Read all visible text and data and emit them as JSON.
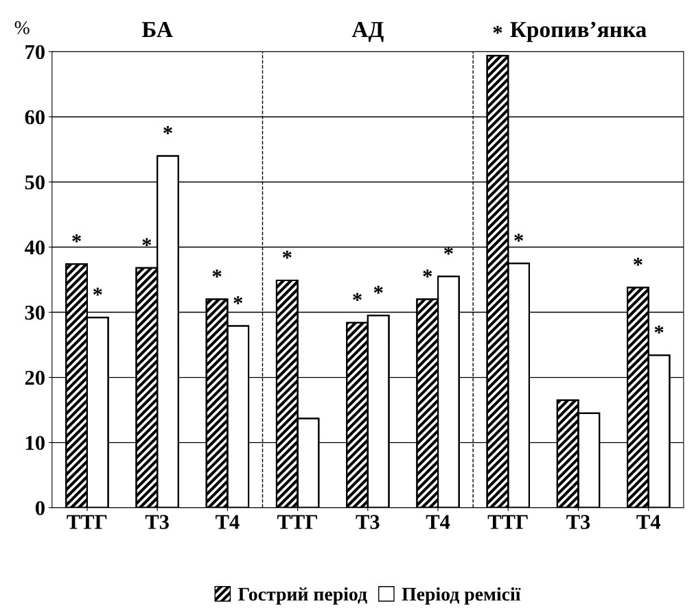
{
  "chart_data": {
    "type": "bar",
    "ylabel": "%",
    "categories": [
      "ТТГ",
      "Т3",
      "Т4",
      "ТТГ",
      "Т3",
      "Т4",
      "ТТГ",
      "Т3",
      "Т4"
    ],
    "series": [
      {
        "name": "Гострий період",
        "color": "#000000",
        "values": [
          37.4,
          36.8,
          32.0,
          34.9,
          28.4,
          32.0,
          69.4,
          16.5,
          33.8
        ],
        "value_labels": [
          "*",
          "*",
          "*",
          "*",
          "*",
          "*",
          "*",
          null,
          "*"
        ]
      },
      {
        "name": "Період ремісії",
        "color": "#ffffff",
        "values": [
          29.2,
          54.0,
          27.9,
          13.7,
          29.5,
          35.5,
          37.5,
          14.5,
          23.4
        ],
        "value_labels": [
          "*",
          "*",
          "*",
          null,
          "*",
          "*",
          "*",
          null,
          "*"
        ]
      }
    ],
    "annotations": [
      "БА",
      "АД",
      "Кропив’янка"
    ],
    "ylim": [
      0,
      70
    ],
    "yticks": [
      0,
      10,
      20,
      30,
      40,
      50,
      60,
      70
    ],
    "grid": "y",
    "legend": "bottom"
  }
}
